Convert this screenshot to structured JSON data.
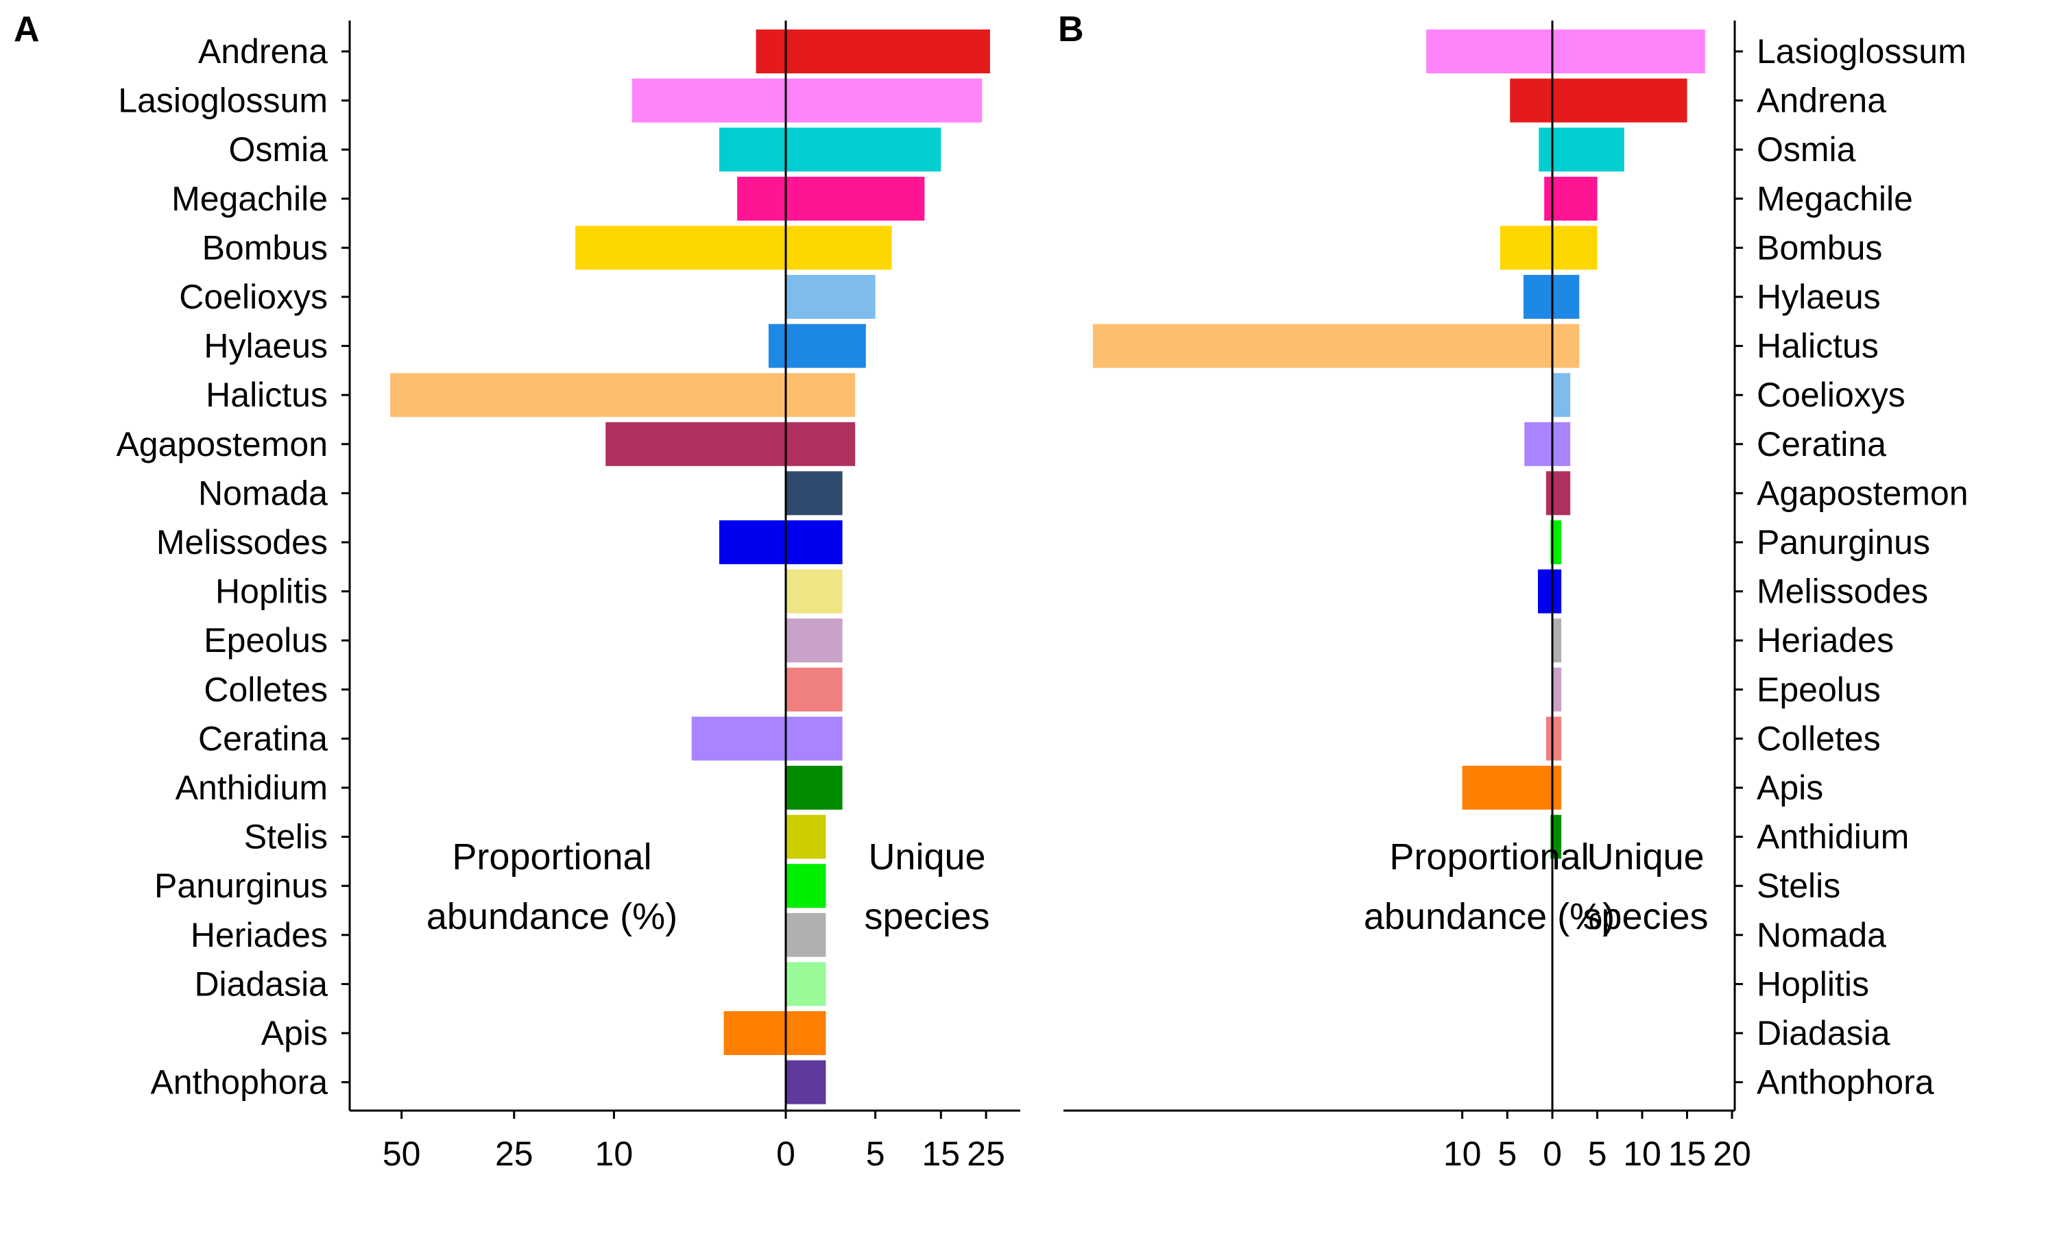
{
  "chart_data": [
    {
      "type": "bar",
      "panel": "A",
      "orientation": "horizontal",
      "title": "",
      "xlabel": "",
      "ylabel": "",
      "x_scale": "sqrt",
      "x_ticks_left": [
        "50",
        "25",
        "10",
        "0"
      ],
      "x_ticks_right": [
        "5",
        "15",
        "25"
      ],
      "x_tick_values_left": [
        50,
        25,
        10,
        0
      ],
      "x_tick_values_right": [
        5,
        15,
        25
      ],
      "xlim_left": 56,
      "xlim_right": 30,
      "category_axis": "left",
      "annotations": [
        {
          "side": "left",
          "lines": [
            "Proportional",
            "abundance (%)"
          ]
        },
        {
          "side": "right",
          "lines": [
            "Unique",
            "species"
          ]
        }
      ],
      "grid": false,
      "legend": "none",
      "categories": [
        "Andrena",
        "Lasioglossum",
        "Osmia",
        "Megachile",
        "Bombus",
        "Coelioxys",
        "Hylaeus",
        "Halictus",
        "Agapostemon",
        "Nomada",
        "Melissodes",
        "Hoplitis",
        "Epeolus",
        "Colletes",
        "Ceratina",
        "Anthidium",
        "Stelis",
        "Panurginus",
        "Heriades",
        "Diadasia",
        "Apis",
        "Anthophora"
      ],
      "series": [
        {
          "side": "left",
          "values": [
            0.3,
            8,
            1.5,
            0.8,
            15,
            0,
            0.1,
            53,
            11,
            0,
            1.5,
            0,
            0,
            0,
            3,
            0,
            0,
            0,
            0,
            0,
            1.3,
            0
          ]
        },
        {
          "side": "right",
          "values": [
            26,
            24,
            15,
            12,
            7,
            5,
            4,
            3,
            3,
            2,
            2,
            2,
            2,
            2,
            2,
            2,
            1,
            1,
            1,
            1,
            1,
            1
          ]
        }
      ],
      "colors": [
        "#E41A1C",
        "#FF83FA",
        "#00CED1",
        "#FF1493",
        "#FFD700",
        "#7EBCEE",
        "#1E88E5",
        "#FDBF6F",
        "#B03060",
        "#2E4A6E",
        "#0000EE",
        "#EEE685",
        "#C8A2C8",
        "#F08080",
        "#A884FF",
        "#008B00",
        "#CDCD00",
        "#00EE00",
        "#B0B0B0",
        "#98FB98",
        "#FF7F00",
        "#5D3A9B"
      ]
    },
    {
      "type": "bar",
      "panel": "B",
      "orientation": "horizontal",
      "title": "",
      "xlabel": "",
      "ylabel": "",
      "x_scale": "linear",
      "x_ticks_left": [
        "10",
        "5",
        "0"
      ],
      "x_ticks_right": [
        "5",
        "10",
        "15",
        "20"
      ],
      "x_tick_values_left": [
        10,
        5,
        0
      ],
      "x_tick_values_right": [
        5,
        10,
        15,
        20
      ],
      "xlim_left": 51,
      "xlim_right": 20,
      "category_axis": "right",
      "annotations": [
        {
          "side": "left",
          "lines": [
            "Proportional",
            "abundance (%)"
          ]
        },
        {
          "side": "right",
          "lines": [
            "Unique",
            "species"
          ]
        }
      ],
      "grid": false,
      "legend": "none",
      "categories": [
        "Lasioglossum",
        "Andrena",
        "Osmia",
        "Megachile",
        "Bombus",
        "Hylaeus",
        "Halictus",
        "Coelioxys",
        "Ceratina",
        "Agapostemon",
        "Panurginus",
        "Melissodes",
        "Heriades",
        "Epeolus",
        "Colletes",
        "Apis",
        "Anthidium",
        "Stelis",
        "Nomada",
        "Hoplitis",
        "Diadasia",
        "Anthophora"
      ],
      "series": [
        {
          "side": "left",
          "values": [
            14,
            4.7,
            1.5,
            0.9,
            5.8,
            3.2,
            51,
            0,
            3.1,
            0.7,
            0.2,
            1.6,
            0,
            0,
            0.7,
            10,
            0.2,
            0,
            0,
            0,
            0,
            0
          ]
        },
        {
          "side": "right",
          "values": [
            17,
            15,
            8,
            5,
            5,
            3,
            3,
            2,
            2,
            2,
            1,
            1,
            1,
            1,
            1,
            1,
            1,
            0,
            0,
            0,
            0,
            0
          ]
        }
      ],
      "colors": [
        "#FF83FA",
        "#E41A1C",
        "#00CED1",
        "#FF1493",
        "#FFD700",
        "#1E88E5",
        "#FDBF6F",
        "#7EBCEE",
        "#A884FF",
        "#B03060",
        "#00EE00",
        "#0000EE",
        "#B0B0B0",
        "#C8A2C8",
        "#F08080",
        "#FF7F00",
        "#008B00",
        "#CDCD00",
        "#2E4A6E",
        "#EEE685",
        "#98FB98",
        "#5D3A9B"
      ]
    }
  ]
}
